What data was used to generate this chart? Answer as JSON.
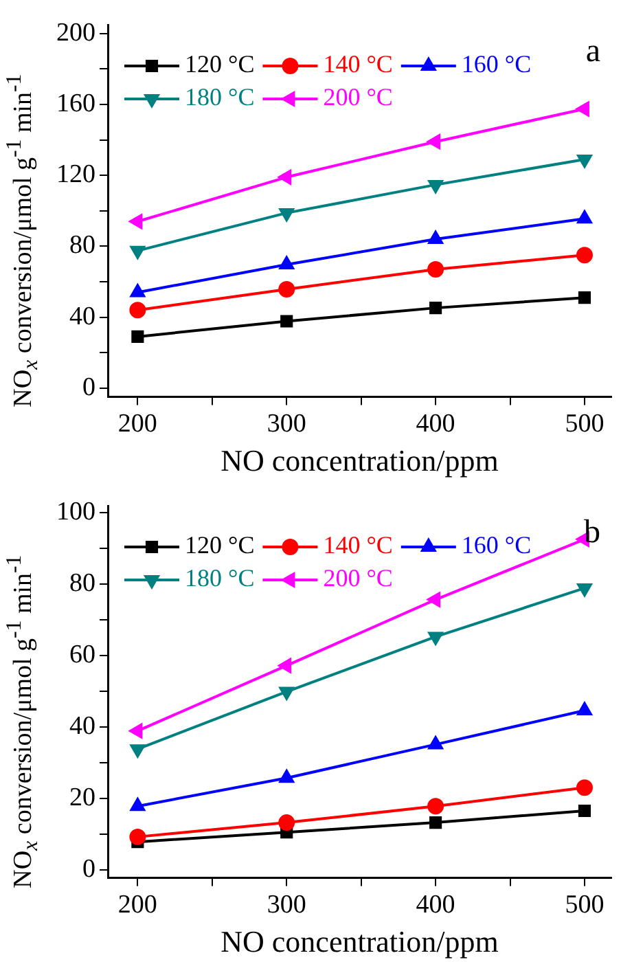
{
  "chart_data": [
    {
      "type": "line",
      "xlabel": "NO concentration/ppm",
      "ylabel": "NO$_{x}$ conversion/μmol g$^{-1}$ min$^{-1}$",
      "annotations": [
        "a"
      ],
      "x": [
        200,
        300,
        400,
        500
      ],
      "xlim": [
        180,
        518
      ],
      "ylim": [
        -5,
        205
      ],
      "xticks": [
        200,
        {
          "value": 250,
          "label": null
        },
        300,
        {
          "value": 350,
          "label": null
        },
        400,
        {
          "value": 450,
          "label": null
        },
        500
      ],
      "yticks": [
        0,
        {
          "value": 20,
          "label": null
        },
        40,
        {
          "value": 60,
          "label": null
        },
        80,
        {
          "value": 100,
          "label": null
        },
        120,
        {
          "value": 140,
          "label": null
        },
        160,
        {
          "value": 180,
          "label": null
        },
        200
      ],
      "grid": false,
      "legend": "top left",
      "line_style": "solid",
      "series": [
        {
          "name": "120 °C",
          "color": "#000000",
          "marker": "square",
          "values": [
            29,
            37.7,
            45.2,
            51
          ]
        },
        {
          "name": "140 °C",
          "color": "#ff0000",
          "marker": "circle",
          "values": [
            44,
            55.7,
            67,
            75
          ]
        },
        {
          "name": "160 °C",
          "color": "#0000ff",
          "marker": "triangle",
          "values": [
            54,
            69.7,
            84,
            95.6
          ]
        },
        {
          "name": "180 °C",
          "color": "#008080",
          "marker": "triangle-down",
          "values": [
            77.5,
            98.8,
            114.7,
            129
          ]
        },
        {
          "name": "200 °C",
          "color": "#ff00ff",
          "marker": "triangle-left",
          "values": [
            94,
            119,
            139,
            157.5
          ]
        }
      ]
    },
    {
      "type": "line",
      "xlabel": "NO concentration/ppm",
      "ylabel": "NO$_{x}$ conversion/μmol g$^{-1}$ min$^{-1}$",
      "annotations": [
        "b"
      ],
      "x": [
        200,
        300,
        400,
        500
      ],
      "xlim": [
        180,
        518
      ],
      "ylim": [
        -2.3,
        102
      ],
      "xticks": [
        200,
        {
          "value": 250,
          "label": null
        },
        300,
        {
          "value": 350,
          "label": null
        },
        400,
        {
          "value": 450,
          "label": null
        },
        500
      ],
      "yticks": [
        0,
        {
          "value": 10,
          "label": null
        },
        20,
        {
          "value": 30,
          "label": null
        },
        40,
        {
          "value": 50,
          "label": null
        },
        60,
        {
          "value": 70,
          "label": null
        },
        80,
        {
          "value": 90,
          "label": null
        },
        100
      ],
      "grid": false,
      "legend": "top left",
      "line_style": "solid",
      "series": [
        {
          "name": "120 °C",
          "color": "#000000",
          "marker": "square",
          "values": [
            7.8,
            10.5,
            13.2,
            16.5
          ]
        },
        {
          "name": "140 °C",
          "color": "#ff0000",
          "marker": "circle",
          "values": [
            9.2,
            13.2,
            17.8,
            23
          ]
        },
        {
          "name": "160 °C",
          "color": "#0000ff",
          "marker": "triangle",
          "values": [
            17.8,
            25.7,
            35.1,
            44.6
          ]
        },
        {
          "name": "180 °C",
          "color": "#008080",
          "marker": "triangle-down",
          "values": [
            33.8,
            49.9,
            65.3,
            78.9
          ]
        },
        {
          "name": "200 °C",
          "color": "#ff00ff",
          "marker": "triangle-left",
          "values": [
            38.9,
            57.2,
            75.7,
            92.6
          ]
        }
      ]
    }
  ]
}
